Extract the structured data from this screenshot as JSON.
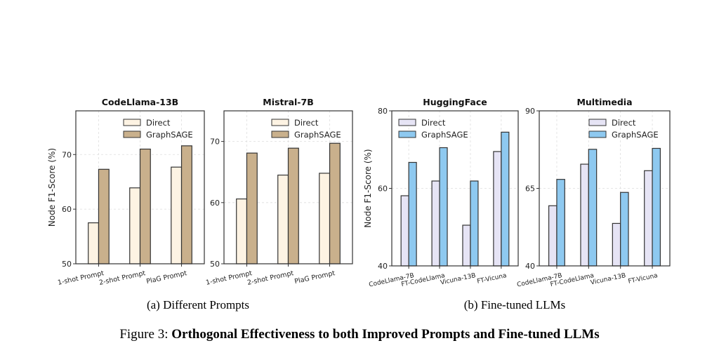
{
  "figure": {
    "label": "Figure 3:",
    "title": "Orthogonal Effectiveness to both Improved Prompts and Fine-tuned LLMs",
    "subcaptions": [
      "(a) Different Prompts",
      "(b) Fine-tuned LLMs"
    ]
  },
  "chart_data": [
    {
      "type": "bar",
      "title": "CodeLlama-13B",
      "ylabel": "Node F1-Score (%)",
      "categories": [
        "1-shot Prompt",
        "2-shot Prompt",
        "PlaG Prompt"
      ],
      "ylim": [
        50,
        78
      ],
      "yticks": [
        50,
        60,
        70
      ],
      "grid": true,
      "legend": "top-right",
      "series": [
        {
          "name": "Direct",
          "color": "#fdf3e3",
          "values": [
            57.5,
            63.9,
            67.7
          ]
        },
        {
          "name": "GraphSAGE",
          "color": "#c9b08c",
          "values": [
            67.3,
            71.0,
            71.6
          ]
        }
      ]
    },
    {
      "type": "bar",
      "title": "Mistral-7B",
      "ylabel": "",
      "categories": [
        "1-shot Prompt",
        "2-shot Prompt",
        "PlaG Prompt"
      ],
      "ylim": [
        50,
        75
      ],
      "yticks": [
        50,
        60,
        70
      ],
      "grid": true,
      "legend": "top-right",
      "series": [
        {
          "name": "Direct",
          "color": "#fdf3e3",
          "values": [
            60.6,
            64.5,
            64.8
          ]
        },
        {
          "name": "GraphSAGE",
          "color": "#c9b08c",
          "values": [
            68.1,
            68.9,
            69.7
          ]
        }
      ]
    },
    {
      "type": "bar",
      "title": "HuggingFace",
      "ylabel": "Node F1-Score (%)",
      "categories": [
        "CodeLlama-7B",
        "FT-CodeLlama",
        "Vicuna-13B",
        "FT-Vicuna"
      ],
      "ylim": [
        40,
        80
      ],
      "yticks": [
        40,
        60,
        80
      ],
      "grid": true,
      "legend": "top-left",
      "series": [
        {
          "name": "Direct",
          "color": "#e6e4f5",
          "values": [
            58.1,
            61.9,
            50.5,
            69.5
          ]
        },
        {
          "name": "GraphSAGE",
          "color": "#8ec9f0",
          "values": [
            66.7,
            70.5,
            61.9,
            74.5
          ]
        }
      ]
    },
    {
      "type": "bar",
      "title": "Multimedia",
      "ylabel": "",
      "categories": [
        "CodeLlama-7B",
        "FT-CodeLlama",
        "Vicuna-13B",
        "FT-Vicuna"
      ],
      "ylim": [
        40,
        90
      ],
      "yticks": [
        40,
        65,
        90
      ],
      "grid": true,
      "legend": "top-right",
      "series": [
        {
          "name": "Direct",
          "color": "#e6e4f5",
          "values": [
            59.4,
            72.8,
            53.7,
            70.7
          ]
        },
        {
          "name": "GraphSAGE",
          "color": "#8ec9f0",
          "values": [
            67.9,
            77.6,
            63.7,
            77.9
          ]
        }
      ]
    }
  ]
}
